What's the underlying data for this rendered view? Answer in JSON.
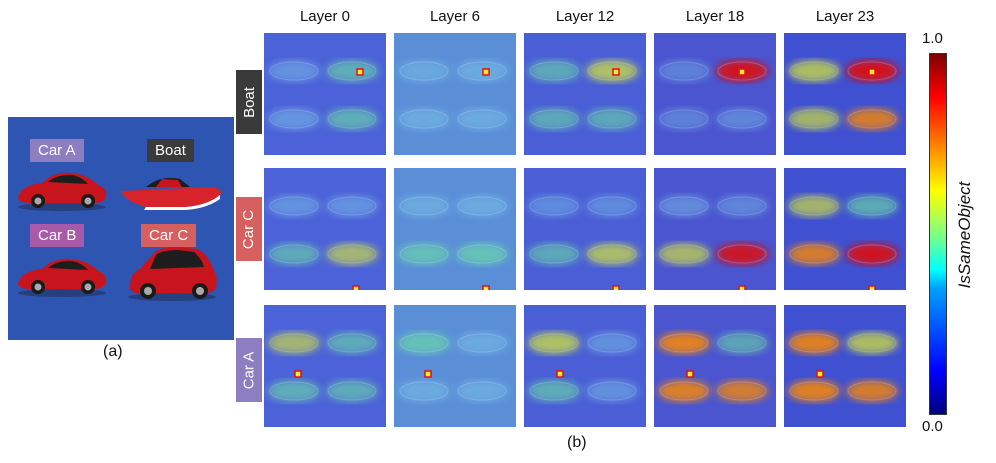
{
  "panel_a": {
    "caption": "(a)",
    "objects": [
      {
        "label": "Car A",
        "color": "#8c7ec0"
      },
      {
        "label": "Boat",
        "color": "#3a3a3a"
      },
      {
        "label": "Car B",
        "color": "#a859a8"
      },
      {
        "label": "Car C",
        "color": "#d65f5f"
      }
    ]
  },
  "panel_b": {
    "caption": "(b)",
    "layers": [
      "Layer 0",
      "Layer 6",
      "Layer 12",
      "Layer 18",
      "Layer 23"
    ],
    "rows": [
      {
        "label": "Boat",
        "color": "#3a3a3a"
      },
      {
        "label": "Car C",
        "color": "#d65f5f"
      },
      {
        "label": "Car A",
        "color": "#8c7ec0"
      }
    ]
  },
  "colorbar": {
    "title": "IsSameObject",
    "max_label": "1.0",
    "min_label": "0.0"
  }
}
